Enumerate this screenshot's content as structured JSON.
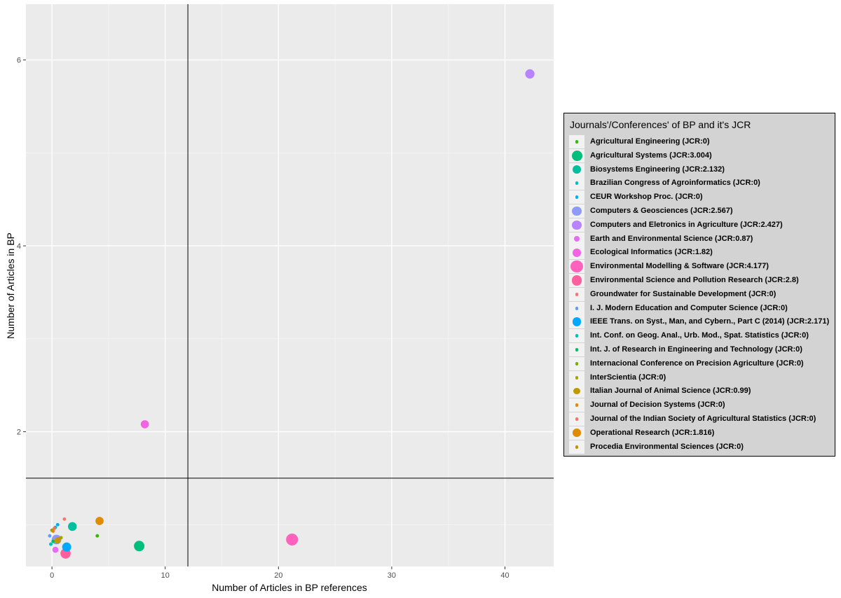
{
  "chart_data": {
    "type": "scatter",
    "xlabel": "Number of Articles in BP references",
    "ylabel": "Number of Articles in BP",
    "xlim": [
      -2.3,
      44.3
    ],
    "ylim": [
      0.55,
      6.6
    ],
    "x_ticks": [
      0,
      10,
      20,
      30,
      40
    ],
    "y_ticks": [
      2,
      4,
      6
    ],
    "grid": true,
    "vline_x": 12,
    "hline_y": 1.5,
    "legend_title": "Journals'/Conferences' of BP and it's JCR",
    "legend_position": "right",
    "series": [
      {
        "name": "Agricultural Engineering (JCR:0)",
        "color": "#39b600",
        "size": 0.6,
        "points": [
          [
            4.0,
            0.88
          ],
          [
            0.4,
            0.85
          ]
        ]
      },
      {
        "name": "Agricultural Systems (JCR:3.004)",
        "color": "#00bf7d",
        "size": 3.0,
        "points": [
          [
            7.7,
            0.77
          ]
        ]
      },
      {
        "name": "Biosystems Engineering (JCR:2.132)",
        "color": "#00bf9c",
        "size": 2.4,
        "points": [
          [
            1.8,
            0.98
          ]
        ]
      },
      {
        "name": "Brazilian Congress of Agroinformatics (JCR:0)",
        "color": "#00bfc4",
        "size": 0.6,
        "points": [
          [
            0.3,
            0.97
          ]
        ]
      },
      {
        "name": "CEUR Workshop Proc. (JCR:0)",
        "color": "#00b0f6",
        "size": 0.6,
        "points": [
          [
            0.5,
            1.0
          ]
        ]
      },
      {
        "name": "Computers & Geosciences (JCR:2.567)",
        "color": "#8f9bf6",
        "size": 2.7,
        "points": [
          [
            0.4,
            0.84
          ]
        ]
      },
      {
        "name": "Computers and Eletronics in Agriculture (JCR:2.427)",
        "color": "#b983ff",
        "size": 2.6,
        "points": [
          [
            42.2,
            5.85
          ]
        ]
      },
      {
        "name": "Earth and Environmental Science (JCR:0.87)",
        "color": "#e76bf3",
        "size": 1.5,
        "points": [
          [
            0.3,
            0.73
          ]
        ]
      },
      {
        "name": "Ecological Informatics (JCR:1.82)",
        "color": "#f263e2",
        "size": 2.2,
        "points": [
          [
            8.2,
            2.08
          ]
        ]
      },
      {
        "name": "Environmental Modelling & Software (JCR:4.177)",
        "color": "#ff62bc",
        "size": 3.5,
        "points": [
          [
            21.2,
            0.84
          ]
        ]
      },
      {
        "name": "Environmental Science and Pollution Research (JCR:2.8)",
        "color": "#ff5f9c",
        "size": 2.9,
        "points": [
          [
            1.2,
            0.69
          ]
        ]
      },
      {
        "name": "Groundwater for Sustainable Development (JCR:0)",
        "color": "#f8766d",
        "size": 0.6,
        "points": [
          [
            1.1,
            1.06
          ]
        ]
      },
      {
        "name": "I. J. Modern Education and Computer Science (JCR:0)",
        "color": "#619cff",
        "size": 0.6,
        "points": [
          [
            -0.2,
            0.88
          ]
        ]
      },
      {
        "name": "IEEE Trans. on Syst., Man, and Cybern., Part C (2014) (JCR:2.171)",
        "color": "#00a9ff",
        "size": 2.5,
        "points": [
          [
            1.3,
            0.76
          ]
        ]
      },
      {
        "name": "Int. Conf. on Geog. Anal., Urb. Mod., Spat. Statistics (JCR:0)",
        "color": "#00c0b8",
        "size": 0.6,
        "points": [
          [
            -0.1,
            0.79
          ]
        ]
      },
      {
        "name": "Int. J. of Research in Engineering and Technology (JCR:0)",
        "color": "#00be67",
        "size": 0.6,
        "points": [
          [
            0.1,
            0.82
          ]
        ]
      },
      {
        "name": "Internacional Conference on Precision Agriculture (JCR:0)",
        "color": "#7cae00",
        "size": 0.6,
        "points": [
          [
            0.0,
            0.94
          ]
        ]
      },
      {
        "name": "InterScientia (JCR:0)",
        "color": "#a3a500",
        "size": 0.6,
        "points": [
          [
            0.8,
            0.86
          ]
        ]
      },
      {
        "name": "Italian Journal of Animal Science (JCR:0.99)",
        "color": "#c09b00",
        "size": 1.6,
        "points": [
          [
            0.5,
            0.83
          ]
        ]
      },
      {
        "name": "Journal of Decision Systems (JCR:0)",
        "color": "#e58700",
        "size": 0.6,
        "points": [
          [
            0.1,
            0.93
          ]
        ]
      },
      {
        "name": "Journal of the Indian Society of Agricultural Statistics (JCR:0)",
        "color": "#fd6f5e",
        "size": 0.6,
        "points": [
          [
            0.2,
            0.96
          ]
        ]
      },
      {
        "name": "Operational Research (JCR:1.816)",
        "color": "#de8c00",
        "size": 2.2,
        "points": [
          [
            4.2,
            1.04
          ]
        ]
      },
      {
        "name": "Procedia Environmental Sciences (JCR:0)",
        "color": "#c29200",
        "size": 0.6,
        "points": [
          [
            0.6,
            0.85
          ]
        ]
      }
    ]
  }
}
